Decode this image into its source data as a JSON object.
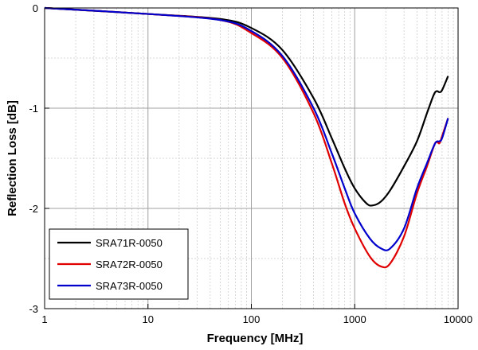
{
  "chart_data": {
    "type": "line",
    "title": "",
    "xlabel": "Frequency [MHz]",
    "ylabel": "Reflection Loss [dB]",
    "xscale": "log",
    "xlim": [
      1,
      10000
    ],
    "ylim": [
      -3,
      0
    ],
    "grid": true,
    "legend_position": "bottom-left",
    "x_ticks": [
      {
        "value": 1,
        "label": "1"
      },
      {
        "value": 10,
        "label": "10"
      },
      {
        "value": 100,
        "label": "100"
      },
      {
        "value": 1000,
        "label": "1000"
      },
      {
        "value": 10000,
        "label": "10000"
      }
    ],
    "y_ticks": [
      {
        "value": 0,
        "label": "0"
      },
      {
        "value": -1,
        "label": "-1"
      },
      {
        "value": -2,
        "label": "-2"
      },
      {
        "value": -3,
        "label": "-3"
      }
    ],
    "series": [
      {
        "name": "SRA71R-0050",
        "color": "#000000",
        "x": [
          1,
          10,
          50,
          100,
          200,
          400,
          600,
          800,
          1000,
          1300,
          1500,
          1800,
          2200,
          3000,
          4000,
          5000,
          5800,
          6200,
          6600,
          7000,
          8000
        ],
        "y": [
          0,
          -0.06,
          -0.11,
          -0.2,
          -0.42,
          -0.9,
          -1.3,
          -1.6,
          -1.8,
          -1.95,
          -1.97,
          -1.93,
          -1.82,
          -1.58,
          -1.33,
          -1.05,
          -0.87,
          -0.83,
          -0.84,
          -0.82,
          -0.68
        ]
      },
      {
        "name": "SRA72R-0050",
        "color": "#e00000",
        "x": [
          1,
          10,
          50,
          100,
          200,
          400,
          600,
          800,
          1000,
          1400,
          1800,
          2200,
          3000,
          4000,
          5000,
          6000,
          6600,
          7000,
          8000
        ],
        "y": [
          0,
          -0.06,
          -0.12,
          -0.25,
          -0.5,
          -1.05,
          -1.55,
          -1.95,
          -2.2,
          -2.48,
          -2.58,
          -2.55,
          -2.28,
          -1.85,
          -1.58,
          -1.35,
          -1.35,
          -1.28,
          -1.1
        ]
      },
      {
        "name": "SRA73R-0050",
        "color": "#0000cc",
        "x": [
          1,
          10,
          50,
          100,
          200,
          400,
          600,
          800,
          1000,
          1400,
          1800,
          2200,
          3000,
          4000,
          5000,
          6000,
          6600,
          7000,
          8000
        ],
        "y": [
          0,
          -0.06,
          -0.12,
          -0.23,
          -0.48,
          -1.0,
          -1.45,
          -1.8,
          -2.05,
          -2.3,
          -2.4,
          -2.4,
          -2.2,
          -1.8,
          -1.55,
          -1.35,
          -1.33,
          -1.3,
          -1.1
        ]
      }
    ]
  }
}
